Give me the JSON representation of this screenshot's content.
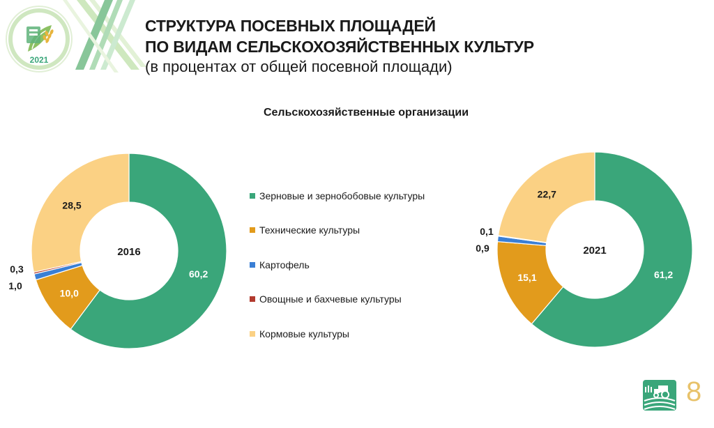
{
  "logo": {
    "year": "2021",
    "arc_text": "СЕЛЬСКОХОЗЯЙСТВЕННАЯ ПЕРЕПИСЬ"
  },
  "title": {
    "line1": "СТРУКТУРА ПОСЕВНЫХ ПЛОЩАДЕЙ",
    "line2": "ПО ВИДАМ СЕЛЬСКОХОЗЯЙСТВЕННЫХ КУЛЬТУР",
    "subtitle": "(в процентах от общей посевной площади)"
  },
  "section_title": "Сельскохозяйственные организации",
  "page_number": "8",
  "legend": [
    {
      "label": "Зерновые и зернобобовые культуры",
      "color": "#3aa67a"
    },
    {
      "label": "Технические культуры",
      "color": "#e29b1c"
    },
    {
      "label": "Картофель",
      "color": "#3a7fd5"
    },
    {
      "label": "Овощные и бахчевые культуры",
      "color": "#b23a2e"
    },
    {
      "label": "Кормовые культуры",
      "color": "#fbd184"
    }
  ],
  "chart_data": [
    {
      "type": "pie",
      "center_label": "2016",
      "categories": [
        "Зерновые и зернобобовые культуры",
        "Технические культуры",
        "Картофель",
        "Овощные и бахчевые культуры",
        "Кормовые культуры"
      ],
      "values": [
        60.2,
        10.0,
        1.0,
        0.3,
        28.5
      ],
      "value_labels": [
        "60,2",
        "10,0",
        "1,0",
        "0,3",
        "28,5"
      ],
      "colors": [
        "#3aa67a",
        "#e29b1c",
        "#3a7fd5",
        "#b23a2e",
        "#fbd184"
      ]
    },
    {
      "type": "pie",
      "center_label": "2021",
      "categories": [
        "Зерновые и зернобобовые культуры",
        "Технические культуры",
        "Картофель",
        "Овощные и бахчевые культуры",
        "Кормовые культуры"
      ],
      "values": [
        61.2,
        15.1,
        0.9,
        0.1,
        22.7
      ],
      "value_labels": [
        "61,2",
        "15,1",
        "0,9",
        "0,1",
        "22,7"
      ],
      "colors": [
        "#3aa67a",
        "#e29b1c",
        "#3a7fd5",
        "#b23a2e",
        "#fbd184"
      ]
    }
  ]
}
